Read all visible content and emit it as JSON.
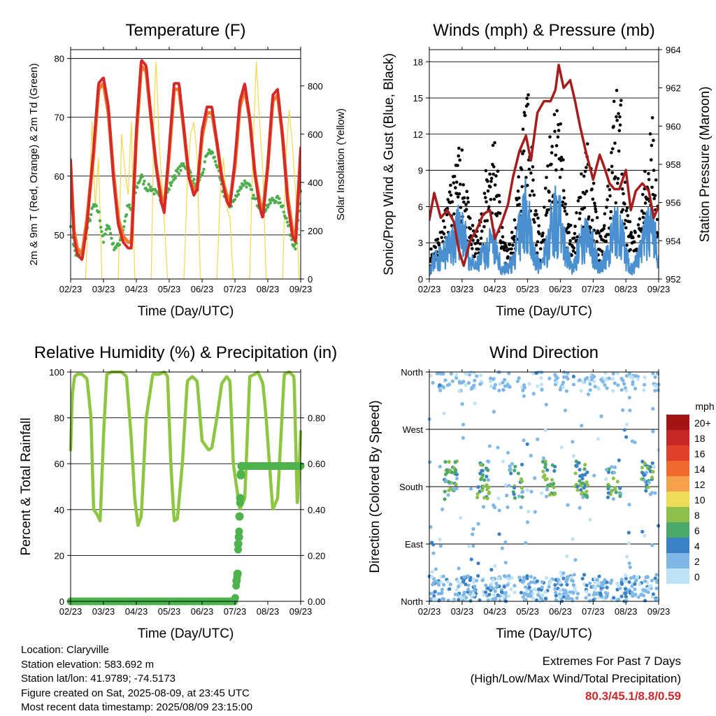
{
  "time_ticks": [
    "02/23",
    "03/23",
    "04/23",
    "05/23",
    "06/23",
    "07/23",
    "08/23",
    "09/23"
  ],
  "info": {
    "location": "Location: Claryville",
    "elevation": "Station elevation: 583.692 m",
    "latlon": "Station lat/lon: 41.9789; -74.5173",
    "created": "Figure created on Sat, 2025-08-09, at 23:45 UTC",
    "recent": "Most recent data timestamp: 2025/08/09 23:15:00"
  },
  "extremes": {
    "title": "Extremes For Past 7 Days",
    "subtitle": "(High/Low/Max Wind/Total Precipitation)",
    "values": "80.3/45.1/8.8/0.59",
    "color": "#cc2a2a"
  },
  "chart_data": [
    {
      "id": "temperature",
      "type": "line",
      "title": "Temperature (F)",
      "xlabel": "Time (Day/UTC)",
      "ylabel": "2m & 9m T (Red, Orange) & 2m Td (Green)",
      "ylabel_right": "Solar Insolation (Yellow)",
      "x_ticks": [
        "02/23",
        "03/23",
        "04/23",
        "05/23",
        "06/23",
        "07/23",
        "08/23",
        "09/23"
      ],
      "ylim": [
        42.5,
        81.5
      ],
      "yticks": [
        50,
        60,
        70,
        80
      ],
      "y2lim": [
        0,
        950
      ],
      "y2ticks": [
        0,
        200,
        400,
        600,
        800
      ],
      "grid_lines": [
        50,
        60,
        70,
        80
      ],
      "series": [
        {
          "name": "2m T",
          "color": "#d62a2a",
          "x": [
            0,
            0.05,
            0.1,
            0.2,
            0.35,
            0.5,
            0.7,
            0.85,
            1,
            1.15,
            1.3,
            1.45,
            1.6,
            1.75,
            1.85,
            2,
            2.15,
            2.3,
            2.45,
            2.6,
            2.75,
            2.85,
            3,
            3.15,
            3.3,
            3.45,
            3.6,
            3.75,
            3.85,
            4,
            4.15,
            4.3,
            4.45,
            4.6,
            4.75,
            4.85,
            5,
            5.15,
            5.3,
            5.45,
            5.6,
            5.75,
            5.85,
            6,
            6.15,
            6.3,
            6.45,
            6.6,
            6.75,
            6.85,
            7
          ],
          "values": [
            63,
            56,
            50,
            47,
            46,
            52,
            65,
            76,
            77,
            72,
            60,
            52,
            49,
            48,
            48,
            68,
            80,
            79,
            70,
            62,
            56,
            54,
            65,
            76,
            76,
            68,
            60,
            57,
            58,
            68,
            72,
            72,
            66,
            60,
            56,
            55,
            63,
            73,
            76,
            70,
            61,
            55,
            53,
            62,
            74,
            75,
            67,
            56,
            50,
            49,
            65
          ]
        },
        {
          "name": "9m T",
          "color": "#f07a28",
          "x": [
            0,
            0.1,
            0.2,
            0.35,
            0.5,
            0.7,
            0.85,
            1,
            1.15,
            1.3,
            1.45,
            1.6,
            1.75,
            1.85,
            2,
            2.15,
            2.3,
            2.45,
            2.6,
            2.75,
            2.85,
            3,
            3.15,
            3.3,
            3.45,
            3.6,
            3.75,
            3.85,
            4,
            4.15,
            4.3,
            4.45,
            4.6,
            4.75,
            4.85,
            5,
            5.15,
            5.3,
            5.45,
            5.6,
            5.75,
            5.85,
            6,
            6.15,
            6.3,
            6.45,
            6.6,
            6.75,
            6.85,
            7
          ],
          "values": [
            62,
            51,
            48,
            47,
            53,
            64,
            75,
            76,
            71,
            61,
            53,
            50,
            49,
            49,
            67,
            79,
            78,
            70,
            62,
            57,
            55,
            64,
            75,
            75,
            68,
            60,
            58,
            58,
            67,
            71,
            71,
            66,
            60,
            57,
            56,
            62,
            72,
            75,
            70,
            61,
            56,
            54,
            62,
            73,
            74,
            67,
            57,
            51,
            50,
            64
          ]
        },
        {
          "name": "2m Td",
          "color": "#4cae4c",
          "x": [
            0,
            0.1,
            0.2,
            0.35,
            0.5,
            0.7,
            0.85,
            1,
            1.15,
            1.3,
            1.45,
            1.6,
            1.75,
            1.85,
            2,
            2.15,
            2.3,
            2.45,
            2.6,
            2.75,
            2.85,
            3,
            3.15,
            3.3,
            3.45,
            3.6,
            3.75,
            3.85,
            4,
            4.15,
            4.3,
            4.45,
            4.6,
            4.75,
            4.85,
            5,
            5.15,
            5.3,
            5.45,
            5.6,
            5.75,
            5.85,
            6,
            6.15,
            6.3,
            6.45,
            6.6,
            6.75,
            6.85,
            7
          ],
          "values": [
            52,
            48,
            46,
            47,
            51,
            55,
            54,
            49,
            52,
            48,
            48,
            51,
            55,
            54,
            58,
            60,
            58,
            58,
            57,
            56,
            56,
            58,
            60,
            61,
            62,
            61,
            59,
            58,
            60,
            64,
            64,
            62,
            58,
            56,
            55,
            56,
            58,
            59,
            58,
            56,
            55,
            54,
            55,
            56,
            56,
            55,
            52,
            49,
            48,
            57
          ]
        },
        {
          "name": "Solar Insolation",
          "color": "#f4d84a",
          "axis": "right",
          "x": [
            0.45,
            0.55,
            0.65,
            0.75,
            0.85,
            0.95,
            1.45,
            1.55,
            1.65,
            1.75,
            1.85,
            1.95,
            2.45,
            2.55,
            2.6,
            2.7,
            2.8,
            2.95,
            3.45,
            3.55,
            3.65,
            3.75,
            3.85,
            3.95,
            4.45,
            4.55,
            4.65,
            4.75,
            4.85,
            4.95,
            5.45,
            5.55,
            5.65,
            5.75,
            5.85,
            5.95,
            6.45,
            6.55,
            6.65,
            6.75,
            6.85,
            6.95
          ],
          "values": [
            0,
            300,
            650,
            300,
            500,
            0,
            0,
            600,
            450,
            350,
            650,
            0,
            0,
            750,
            900,
            550,
            350,
            0,
            0,
            400,
            600,
            650,
            500,
            0,
            0,
            350,
            500,
            300,
            250,
            0,
            0,
            550,
            900,
            650,
            450,
            0,
            0,
            500,
            700,
            550,
            350,
            0
          ]
        }
      ]
    },
    {
      "id": "winds",
      "type": "scatter",
      "title": "Winds (mph) & Pressure (mb)",
      "xlabel": "Time (Day/UTC)",
      "ylabel": "Sonic/Prop Wind & Gust (Blue, Black)",
      "ylabel_right": "Station Pressure (Maroon)",
      "x_ticks": [
        "02/23",
        "03/23",
        "04/23",
        "05/23",
        "06/23",
        "07/23",
        "08/23",
        "09/23"
      ],
      "ylim": [
        0,
        19
      ],
      "yticks": [
        0,
        3,
        6,
        9,
        12,
        15,
        18
      ],
      "y2lim": [
        952,
        964
      ],
      "y2ticks": [
        952,
        954,
        956,
        958,
        960,
        962,
        964
      ],
      "grid_lines": [
        3,
        6,
        9,
        12,
        15,
        18
      ],
      "series": [
        {
          "name": "Sonic/Prop Wind",
          "color": "#4a90d0",
          "x": [
            0,
            0.2,
            0.4,
            0.6,
            0.8,
            1,
            1.2,
            1.4,
            1.6,
            1.8,
            2,
            2.2,
            2.4,
            2.6,
            2.8,
            3,
            3.2,
            3.4,
            3.6,
            3.8,
            4,
            4.2,
            4.4,
            4.6,
            4.8,
            5,
            5.2,
            5.4,
            5.6,
            5.8,
            6,
            6.2,
            6.4,
            6.6,
            6.8,
            7
          ],
          "values": [
            1,
            2,
            2,
            3,
            4,
            5,
            2,
            1,
            2,
            3,
            3,
            1,
            1,
            2,
            5,
            7,
            2,
            1,
            3,
            6,
            5,
            2,
            1,
            3,
            4,
            3,
            1,
            2,
            4,
            5,
            2,
            1,
            2,
            4,
            5,
            2
          ]
        },
        {
          "name": "Gust",
          "color": "#000000",
          "x": [
            0,
            0.2,
            0.4,
            0.6,
            0.8,
            1,
            1.2,
            1.4,
            1.6,
            1.8,
            2,
            2.2,
            2.4,
            2.6,
            2.8,
            3,
            3.2,
            3.4,
            3.6,
            3.8,
            4,
            4.2,
            4.4,
            4.6,
            4.8,
            5,
            5.2,
            5.4,
            5.6,
            5.8,
            6,
            6.2,
            6.4,
            6.6,
            6.8,
            7
          ],
          "values": [
            2,
            3,
            4,
            6,
            8,
            10,
            5,
            3,
            5,
            9,
            11,
            4,
            2,
            4,
            10,
            15,
            6,
            3,
            8,
            13,
            11,
            5,
            3,
            7,
            10,
            7,
            3,
            5,
            12,
            15,
            6,
            3,
            4,
            8,
            13,
            4
          ]
        },
        {
          "name": "Station Pressure",
          "color": "#a61d1d",
          "axis": "right",
          "x": [
            0,
            0.15,
            0.35,
            0.55,
            0.75,
            0.9,
            1.05,
            1.25,
            1.45,
            1.65,
            1.85,
            2.0,
            2.2,
            2.4,
            2.55,
            2.75,
            2.95,
            3.1,
            3.3,
            3.5,
            3.7,
            3.85,
            3.95,
            4.1,
            4.3,
            4.45,
            4.6,
            4.8,
            5.0,
            5.2,
            5.35,
            5.5,
            5.65,
            5.8,
            6.0,
            6.15,
            6.3,
            6.5,
            6.7,
            6.85,
            7
          ],
          "values": [
            955.1,
            956.5,
            955.2,
            955.6,
            955.0,
            953.5,
            952.7,
            954.0,
            954.6,
            955.4,
            955.6,
            954.1,
            954.9,
            955.9,
            957.3,
            958.7,
            959.5,
            958.2,
            960.7,
            961.3,
            961.3,
            961.9,
            963.2,
            962.0,
            962.4,
            961.3,
            960.0,
            958.5,
            957.2,
            958.5,
            957.8,
            957.0,
            956.7,
            956.7,
            957.7,
            955.6,
            956.6,
            957.0,
            956.6,
            955.2,
            955.8
          ]
        }
      ]
    },
    {
      "id": "humidity",
      "type": "line",
      "title": "Relative Humidity (%) & Precipitation (in)",
      "xlabel": "Time (Day/UTC)",
      "ylabel": "Percent & Total Rainfall",
      "x_ticks": [
        "02/23",
        "03/23",
        "04/23",
        "05/23",
        "06/23",
        "07/23",
        "08/23",
        "09/23"
      ],
      "ylim": [
        0,
        100
      ],
      "yticks": [
        0,
        20,
        40,
        60,
        80,
        100
      ],
      "y2lim": [
        0,
        1.0
      ],
      "y2ticks": [
        "0.00",
        "0.20",
        "0.40",
        "0.60",
        "0.80"
      ],
      "grid_lines": [
        20,
        40,
        60,
        80,
        100
      ],
      "series": [
        {
          "name": "Relative Humidity",
          "color": "#8ec641",
          "x": [
            0,
            0.05,
            0.12,
            0.2,
            0.35,
            0.5,
            0.62,
            0.7,
            0.8,
            0.9,
            1.0,
            1.1,
            1.25,
            1.4,
            1.55,
            1.7,
            1.85,
            1.95,
            2.05,
            2.15,
            2.3,
            2.5,
            2.7,
            2.85,
            2.95,
            3.05,
            3.15,
            3.25,
            3.4,
            3.55,
            3.7,
            3.85,
            4.0,
            4.1,
            4.2,
            4.3,
            4.45,
            4.6,
            4.75,
            4.85,
            4.95,
            5.05,
            5.15,
            5.3,
            5.45,
            5.6,
            5.7,
            5.85,
            5.95,
            6.05,
            6.15,
            6.3,
            6.5,
            6.65,
            6.8,
            6.9,
            7.0
          ],
          "values": [
            66,
            90,
            98,
            99,
            99,
            97,
            80,
            40,
            38,
            35,
            72,
            99,
            100,
            100,
            100,
            98,
            70,
            45,
            33,
            37,
            80,
            99,
            99,
            100,
            98,
            60,
            35,
            36,
            60,
            96,
            98,
            96,
            70,
            68,
            66,
            67,
            80,
            95,
            98,
            96,
            60,
            50,
            40,
            45,
            98,
            99,
            100,
            95,
            80,
            60,
            40,
            45,
            99,
            100,
            98,
            40,
            74
          ]
        },
        {
          "name": "Total Precipitation",
          "color": "#4db34d",
          "axis": "right",
          "x": [
            0,
            1,
            2,
            3,
            4,
            5,
            5.05,
            5.08,
            5.1,
            5.12,
            5.14,
            5.16,
            5.18,
            5.2,
            5.5,
            6,
            6.5,
            7
          ],
          "values": [
            0,
            0,
            0,
            0,
            0,
            0,
            0.09,
            0.12,
            0.25,
            0.28,
            0.37,
            0.45,
            0.55,
            0.59,
            0.59,
            0.59,
            0.59,
            0.59
          ]
        }
      ]
    },
    {
      "id": "wind_direction",
      "type": "scatter",
      "title": "Wind Direction",
      "xlabel": "Time (Day/UTC)",
      "ylabel": "Direction (Colored By Speed)",
      "x_ticks": [
        "02/23",
        "03/23",
        "04/23",
        "05/23",
        "06/23",
        "07/23",
        "08/23",
        "09/23"
      ],
      "ylim": [
        0,
        360
      ],
      "yticks": [
        "North",
        "East",
        "South",
        "West",
        "North"
      ],
      "ytick_values": [
        0,
        90,
        180,
        270,
        360
      ],
      "colorbar": {
        "title": "mph",
        "labels": [
          "20+",
          "18",
          "16",
          "14",
          "12",
          "10",
          "8",
          "6",
          "4",
          "2",
          "0"
        ],
        "colors": [
          "#a31515",
          "#c62828",
          "#e0402a",
          "#f06a30",
          "#f5a04a",
          "#ecdc5a",
          "#8dc04a",
          "#4aa86a",
          "#3b82c4",
          "#7fb8e6",
          "#bfe2f7"
        ]
      },
      "series": [
        {
          "name": "Direction",
          "x": [
            0.1,
            0.3,
            0.5,
            0.7,
            0.9,
            1.2,
            1.5,
            1.7,
            1.9,
            2.2,
            2.5,
            2.7,
            3.0,
            3.2,
            3.4,
            3.6,
            3.8,
            4.0,
            4.3,
            4.5,
            4.7,
            5.0,
            5.2,
            5.4,
            5.6,
            5.8,
            6.0,
            6.2,
            6.5,
            6.7,
            6.9
          ],
          "values": [
            20,
            15,
            355,
            30,
            190,
            15,
            350,
            25,
            10,
            30,
            355,
            20,
            195,
            185,
            20,
            180,
            200,
            15,
            30,
            190,
            175,
            20,
            190,
            15,
            185,
            10,
            200,
            25,
            350,
            195,
            180
          ]
        }
      ]
    }
  ]
}
